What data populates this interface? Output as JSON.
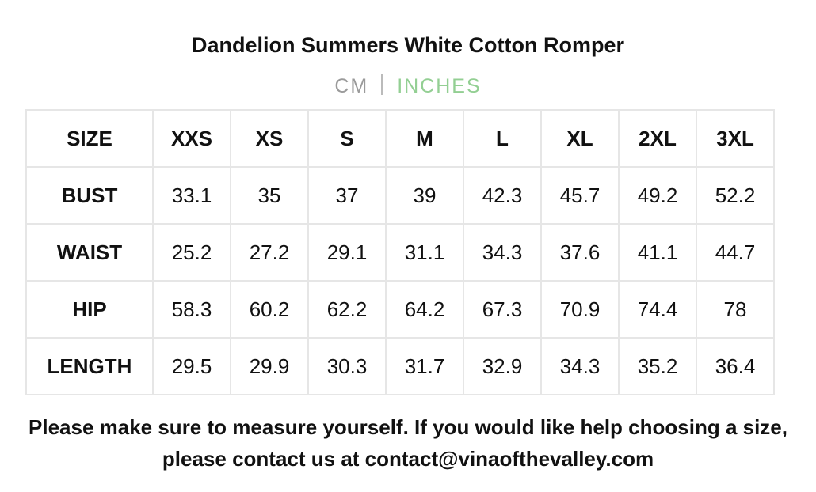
{
  "title": "Dandelion Summers White Cotton Romper",
  "units": [
    "CM",
    "INCHES"
  ],
  "table": {
    "header": [
      "SIZE",
      "XXS",
      "XS",
      "S",
      "M",
      "L",
      "XL",
      "2XL",
      "3XL"
    ],
    "rows": [
      [
        "BUST",
        "33.1",
        "35",
        "37",
        "39",
        "42.3",
        "45.7",
        "49.2",
        "52.2"
      ],
      [
        "WAIST",
        "25.2",
        "27.2",
        "29.1",
        "31.1",
        "34.3",
        "37.6",
        "41.1",
        "44.7"
      ],
      [
        "HIP",
        "58.3",
        "60.2",
        "62.2",
        "64.2",
        "67.3",
        "70.9",
        "74.4",
        "78"
      ],
      [
        "LENGTH",
        "29.5",
        "29.9",
        "30.3",
        "31.7",
        "32.9",
        "34.3",
        "35.2",
        "36.4"
      ]
    ]
  },
  "note": "Please make sure to measure yourself. If you would like help choosing a size, please contact us at contact@vinaofthevalley.com"
}
